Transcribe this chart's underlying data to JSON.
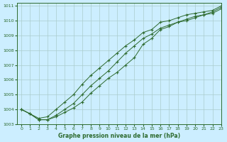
{
  "title": "Graphe pression niveau de la mer (hPa)",
  "bg_color": "#cceeff",
  "grid_color": "#aacccc",
  "line_color": "#2d6a2d",
  "marker_color": "#2d6a2d",
  "xlim": [
    -0.5,
    23
  ],
  "ylim": [
    1003,
    1011.2
  ],
  "xticks": [
    0,
    1,
    2,
    3,
    4,
    5,
    6,
    7,
    8,
    9,
    10,
    11,
    12,
    13,
    14,
    15,
    16,
    17,
    18,
    19,
    20,
    21,
    22,
    23
  ],
  "yticks": [
    1003,
    1004,
    1005,
    1006,
    1007,
    1008,
    1009,
    1010,
    1011
  ],
  "series": [
    [
      1004.0,
      1003.7,
      1003.4,
      1003.5,
      1004.0,
      1004.5,
      1005.0,
      1005.7,
      1006.3,
      1006.8,
      1007.3,
      1007.8,
      1008.3,
      1008.7,
      1009.2,
      1009.4,
      1009.9,
      1010.0,
      1010.2,
      1010.4,
      1010.5,
      1010.6,
      1010.7,
      1011.0
    ],
    [
      1004.0,
      1003.7,
      1003.3,
      1003.3,
      1003.6,
      1004.0,
      1004.4,
      1005.0,
      1005.6,
      1006.1,
      1006.6,
      1007.2,
      1007.8,
      1008.3,
      1008.8,
      1009.1,
      1009.5,
      1009.7,
      1009.9,
      1010.1,
      1010.3,
      1010.4,
      1010.6,
      1010.9
    ],
    [
      1004.0,
      1003.7,
      1003.3,
      1003.3,
      1003.5,
      1003.8,
      1004.1,
      1004.5,
      1005.1,
      1005.6,
      1006.1,
      1006.5,
      1007.0,
      1007.5,
      1008.4,
      1008.8,
      1009.4,
      1009.6,
      1009.9,
      1010.0,
      1010.2,
      1010.4,
      1010.5,
      1010.8
    ]
  ]
}
